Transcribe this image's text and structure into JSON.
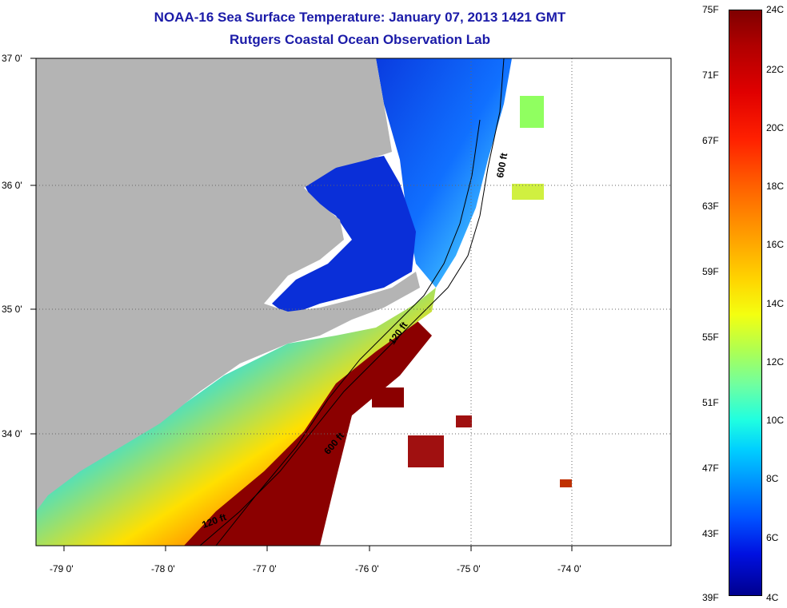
{
  "title": "NOAA-16 Sea Surface Temperature:  January 07, 2013 1421 GMT",
  "subtitle": "Rutgers Coastal Ocean Observation Lab",
  "latitude_labels": [
    "37 0'",
    "36 0'",
    "35 0'",
    "34 0'"
  ],
  "longitude_labels": [
    "-79 0'",
    "-78 0'",
    "-77 0'",
    "-76 0'",
    "-75 0'",
    "-74 0'"
  ],
  "colorbar": {
    "fahrenheit_labels": [
      "75F",
      "71F",
      "67F",
      "63F",
      "59F",
      "55F",
      "51F",
      "47F",
      "43F",
      "39F"
    ],
    "celsius_labels": [
      "24C",
      "22C",
      "20C",
      "18C",
      "16C",
      "14C",
      "12C",
      "10C",
      "8C",
      "6C",
      "4C"
    ],
    "range_f": [
      39,
      75
    ],
    "range_c": [
      4,
      24
    ]
  },
  "contours": {
    "shelf_120ft": "120 ft",
    "slope_600ft": "600 ft",
    "shelf_120ft_south": "120 ft",
    "slope_600ft_south": "600 ft"
  },
  "colors": {
    "land": "#b4b4b4",
    "title": "#1b1ba8",
    "cold": "#0a2fd8",
    "warm": "#8b0000"
  }
}
